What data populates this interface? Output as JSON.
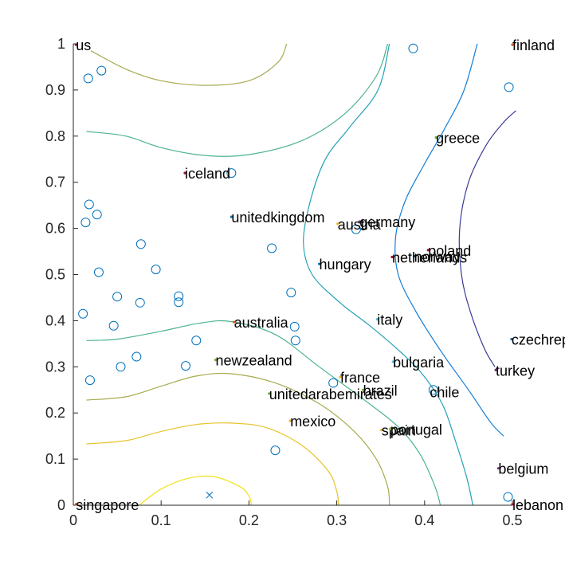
{
  "chart_data": {
    "type": "scatter",
    "title": "",
    "xlabel": "",
    "ylabel": "",
    "xlim": [
      0,
      0.5
    ],
    "ylim": [
      0,
      1
    ],
    "xticks": [
      0,
      0.1,
      0.2,
      0.3,
      0.4,
      0.5
    ],
    "xtick_labels": [
      "0",
      "0.1",
      "0.2",
      "0.3",
      "0.4",
      "0.5"
    ],
    "yticks": [
      0,
      0.1,
      0.2,
      0.3,
      0.4,
      0.5,
      0.6,
      0.7,
      0.8,
      0.9,
      1
    ],
    "ytick_labels": [
      "0",
      "0.1",
      "0.2",
      "0.3",
      "0.4",
      "0.5",
      "0.6",
      "0.7",
      "0.8",
      "0.9",
      "1"
    ],
    "grid": false,
    "box": false,
    "countries": [
      {
        "name": "us",
        "x": 0.003,
        "y": 0.998,
        "color": "#a2142f"
      },
      {
        "name": "finland",
        "x": 0.5,
        "y": 0.998,
        "color": "#d95319"
      },
      {
        "name": "greece",
        "x": 0.413,
        "y": 0.797,
        "color": "#77ac30"
      },
      {
        "name": "iceland",
        "x": 0.127,
        "y": 0.72,
        "color": "#a2142f"
      },
      {
        "name": "unitedkingdom",
        "x": 0.18,
        "y": 0.625,
        "color": "#0072bd"
      },
      {
        "name": "germany",
        "x": 0.326,
        "y": 0.615,
        "color": "#7e2f8e"
      },
      {
        "name": "austria",
        "x": 0.301,
        "y": 0.61,
        "color": "#edb120"
      },
      {
        "name": "poland",
        "x": 0.404,
        "y": 0.553,
        "color": "#a2142f"
      },
      {
        "name": "norway",
        "x": 0.388,
        "y": 0.54,
        "color": "#0072bd"
      },
      {
        "name": "netherlands",
        "x": 0.363,
        "y": 0.538,
        "color": "#a2142f"
      },
      {
        "name": "hungary",
        "x": 0.28,
        "y": 0.523,
        "color": "#0072bd"
      },
      {
        "name": "italy",
        "x": 0.346,
        "y": 0.403,
        "color": "#4dbeee"
      },
      {
        "name": "australia",
        "x": 0.183,
        "y": 0.397,
        "color": "#d95319"
      },
      {
        "name": "czechrepublic",
        "x": 0.499,
        "y": 0.36,
        "color": "#0072bd"
      },
      {
        "name": "newzealand",
        "x": 0.162,
        "y": 0.315,
        "color": "#77ac30"
      },
      {
        "name": "bulgaria",
        "x": 0.364,
        "y": 0.311,
        "color": "#4dbeee"
      },
      {
        "name": "turkey",
        "x": 0.481,
        "y": 0.293,
        "color": "#7e2f8e"
      },
      {
        "name": "france",
        "x": 0.304,
        "y": 0.278,
        "color": "#edb120"
      },
      {
        "name": "brazil",
        "x": 0.33,
        "y": 0.25,
        "color": "#77ac30"
      },
      {
        "name": "chile",
        "x": 0.406,
        "y": 0.246,
        "color": "#4dbeee"
      },
      {
        "name": "unitedarabemirates",
        "x": 0.223,
        "y": 0.242,
        "color": "#77ac30"
      },
      {
        "name": "mexico",
        "x": 0.247,
        "y": 0.183,
        "color": "#edb120"
      },
      {
        "name": "spain",
        "x": 0.351,
        "y": 0.163,
        "color": "#edb120"
      },
      {
        "name": "portugal",
        "x": 0.361,
        "y": 0.165,
        "color": "#77ac30"
      },
      {
        "name": "belgium",
        "x": 0.484,
        "y": 0.08,
        "color": "#7e2f8e"
      },
      {
        "name": "singapore",
        "x": 0.003,
        "y": 0.002,
        "color": "#d95319"
      },
      {
        "name": "lebanon",
        "x": 0.5,
        "y": 0.002,
        "color": "#a2142f"
      }
    ],
    "circles": [
      {
        "x": 0.387,
        "y": 0.99
      },
      {
        "x": 0.496,
        "y": 0.906
      },
      {
        "x": 0.017,
        "y": 0.925
      },
      {
        "x": 0.032,
        "y": 0.942
      },
      {
        "x": 0.18,
        "y": 0.72
      },
      {
        "x": 0.018,
        "y": 0.652
      },
      {
        "x": 0.014,
        "y": 0.613
      },
      {
        "x": 0.027,
        "y": 0.63
      },
      {
        "x": 0.322,
        "y": 0.598
      },
      {
        "x": 0.077,
        "y": 0.566
      },
      {
        "x": 0.226,
        "y": 0.557
      },
      {
        "x": 0.029,
        "y": 0.505
      },
      {
        "x": 0.094,
        "y": 0.511
      },
      {
        "x": 0.248,
        "y": 0.461
      },
      {
        "x": 0.05,
        "y": 0.452
      },
      {
        "x": 0.12,
        "y": 0.453
      },
      {
        "x": 0.12,
        "y": 0.44
      },
      {
        "x": 0.076,
        "y": 0.439
      },
      {
        "x": 0.011,
        "y": 0.415
      },
      {
        "x": 0.046,
        "y": 0.389
      },
      {
        "x": 0.252,
        "y": 0.387
      },
      {
        "x": 0.253,
        "y": 0.357
      },
      {
        "x": 0.14,
        "y": 0.357
      },
      {
        "x": 0.072,
        "y": 0.322
      },
      {
        "x": 0.054,
        "y": 0.3
      },
      {
        "x": 0.128,
        "y": 0.302
      },
      {
        "x": 0.019,
        "y": 0.271
      },
      {
        "x": 0.296,
        "y": 0.265
      },
      {
        "x": 0.41,
        "y": 0.25
      },
      {
        "x": 0.23,
        "y": 0.119
      },
      {
        "x": 0.495,
        "y": 0.018
      }
    ],
    "cross": {
      "x": 0.155,
      "y": 0.022
    },
    "contours": [
      {
        "color": "#a9ab50",
        "points": [
          [
            0.02,
            0.985
          ],
          [
            0.06,
            0.945
          ],
          [
            0.1,
            0.92
          ],
          [
            0.15,
            0.91
          ],
          [
            0.2,
            0.92
          ],
          [
            0.233,
            0.96
          ],
          [
            0.243,
            1.0
          ]
        ]
      },
      {
        "color": "#4cb48b",
        "points": [
          [
            0.015,
            0.81
          ],
          [
            0.06,
            0.8
          ],
          [
            0.1,
            0.775
          ],
          [
            0.15,
            0.758
          ],
          [
            0.2,
            0.76
          ],
          [
            0.26,
            0.79
          ],
          [
            0.31,
            0.85
          ],
          [
            0.345,
            0.93
          ],
          [
            0.358,
            1.0
          ]
        ]
      },
      {
        "color": "#23a1b5",
        "points": [
          [
            0.36,
            1.0
          ],
          [
            0.347,
            0.9
          ],
          [
            0.315,
            0.82
          ],
          [
            0.287,
            0.75
          ],
          [
            0.27,
            0.66
          ],
          [
            0.262,
            0.57
          ],
          [
            0.272,
            0.5
          ],
          [
            0.303,
            0.44
          ],
          [
            0.337,
            0.39
          ],
          [
            0.368,
            0.34
          ],
          [
            0.395,
            0.29
          ],
          [
            0.42,
            0.22
          ],
          [
            0.435,
            0.14
          ],
          [
            0.448,
            0.06
          ],
          [
            0.455,
            0.0
          ]
        ]
      },
      {
        "color": "#137ed8",
        "points": [
          [
            0.46,
            1.0
          ],
          [
            0.445,
            0.9
          ],
          [
            0.424,
            0.82
          ],
          [
            0.4,
            0.74
          ],
          [
            0.378,
            0.66
          ],
          [
            0.367,
            0.58
          ],
          [
            0.37,
            0.5
          ],
          [
            0.39,
            0.42
          ],
          [
            0.42,
            0.33
          ],
          [
            0.45,
            0.25
          ],
          [
            0.475,
            0.18
          ],
          [
            0.49,
            0.15
          ]
        ]
      },
      {
        "color": "#3a3b96",
        "points": [
          [
            0.504,
            0.855
          ],
          [
            0.49,
            0.83
          ],
          [
            0.47,
            0.78
          ],
          [
            0.45,
            0.7
          ],
          [
            0.44,
            0.6
          ],
          [
            0.442,
            0.5
          ],
          [
            0.452,
            0.42
          ],
          [
            0.468,
            0.34
          ],
          [
            0.48,
            0.3
          ]
        ]
      },
      {
        "color": "#4cb48b",
        "points": [
          [
            0.015,
            0.357
          ],
          [
            0.05,
            0.36
          ],
          [
            0.1,
            0.377
          ],
          [
            0.145,
            0.395
          ],
          [
            0.18,
            0.398
          ],
          [
            0.23,
            0.37
          ],
          [
            0.28,
            0.3
          ],
          [
            0.33,
            0.23
          ],
          [
            0.37,
            0.17
          ],
          [
            0.395,
            0.11
          ],
          [
            0.412,
            0.04
          ],
          [
            0.418,
            0.0
          ]
        ]
      },
      {
        "color": "#a9ab50",
        "points": [
          [
            0.015,
            0.228
          ],
          [
            0.06,
            0.235
          ],
          [
            0.1,
            0.258
          ],
          [
            0.14,
            0.28
          ],
          [
            0.18,
            0.285
          ],
          [
            0.23,
            0.265
          ],
          [
            0.28,
            0.22
          ],
          [
            0.32,
            0.16
          ],
          [
            0.345,
            0.1
          ],
          [
            0.358,
            0.04
          ],
          [
            0.36,
            0.0
          ]
        ]
      },
      {
        "color": "#e6c32b",
        "points": [
          [
            0.015,
            0.133
          ],
          [
            0.06,
            0.14
          ],
          [
            0.1,
            0.16
          ],
          [
            0.14,
            0.175
          ],
          [
            0.18,
            0.178
          ],
          [
            0.22,
            0.168
          ],
          [
            0.26,
            0.13
          ],
          [
            0.29,
            0.075
          ],
          [
            0.3,
            0.03
          ],
          [
            0.302,
            0.0
          ]
        ]
      },
      {
        "color": "#f2e21a",
        "points": [
          [
            0.075,
            0.0
          ],
          [
            0.1,
            0.035
          ],
          [
            0.13,
            0.058
          ],
          [
            0.16,
            0.062
          ],
          [
            0.19,
            0.04
          ],
          [
            0.2,
            0.02
          ],
          [
            0.203,
            0.0
          ]
        ]
      }
    ]
  }
}
